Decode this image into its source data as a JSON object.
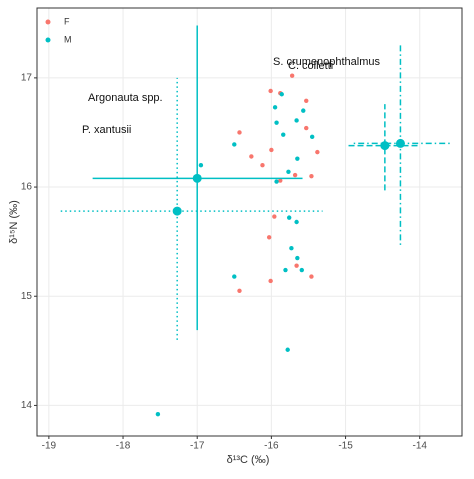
{
  "chart_data": {
    "type": "scatter",
    "x_label": "δ¹³C (‰)",
    "y_label": "δ¹⁵N (‰)",
    "xlim": [
      -19.16,
      -13.43
    ],
    "ylim": [
      13.72,
      17.64
    ],
    "xticks": [
      -19,
      -18,
      -17,
      -16,
      -15,
      -14
    ],
    "yticks": [
      14,
      15,
      16,
      17
    ],
    "grid": true,
    "legend": "top-left",
    "series": [
      {
        "name": "F",
        "color": "#F8766D",
        "x": [
          -16.43,
          -16.27,
          -16.12,
          -16.01,
          -16.0,
          -15.72,
          -15.53,
          -15.53,
          -15.38,
          -15.46,
          -15.68,
          -15.88,
          -15.96,
          -16.03,
          -15.66,
          -15.46,
          -16.01,
          -16.43,
          -15.88
        ],
        "y": [
          16.5,
          16.28,
          16.2,
          16.88,
          16.34,
          17.02,
          16.79,
          16.54,
          16.32,
          16.1,
          16.11,
          16.06,
          15.73,
          15.54,
          15.28,
          15.18,
          15.14,
          15.05,
          16.86
        ]
      },
      {
        "name": "M",
        "color": "#00BFC4",
        "x": [
          -16.5,
          -16.95,
          -15.95,
          -15.86,
          -15.93,
          -15.84,
          -15.66,
          -15.57,
          -15.45,
          -15.65,
          -15.77,
          -15.93,
          -15.76,
          -15.66,
          -15.73,
          -15.65,
          -15.59,
          -15.81,
          -16.5,
          -15.78,
          -17.53
        ],
        "y": [
          16.39,
          16.2,
          16.73,
          16.85,
          16.59,
          16.48,
          16.61,
          16.7,
          16.46,
          16.26,
          16.14,
          16.05,
          15.72,
          15.68,
          15.44,
          15.35,
          15.24,
          15.24,
          15.18,
          14.51,
          13.92
        ]
      }
    ],
    "error_bars": [
      {
        "label": "Argonauta spp.",
        "color": "#00BFC4",
        "linetype": "dotted",
        "x": -17.27,
        "y": 15.78,
        "xmin": -18.84,
        "xmax": -15.31,
        "ymin": 14.6,
        "ymax": 17.0
      },
      {
        "label": "P. xantusii",
        "color": "#00BFC4",
        "linetype": "solid",
        "x": -17.0,
        "y": 16.08,
        "xmin": -18.41,
        "xmax": -15.58,
        "ymin": 14.69,
        "ymax": 17.48
      },
      {
        "label": "S. crumenophthalmus",
        "color": "#00BFC4",
        "linetype": "dotdash",
        "x": -14.26,
        "y": 16.4,
        "xmin": -14.89,
        "xmax": -13.58,
        "ymin": 15.47,
        "ymax": 17.32
      },
      {
        "label": "C. colletti",
        "color": "#00BFC4",
        "linetype": "dashed",
        "x": -14.47,
        "y": 16.38,
        "xmin": -14.96,
        "xmax": -14.0,
        "ymin": 15.97,
        "ymax": 16.76
      }
    ]
  }
}
